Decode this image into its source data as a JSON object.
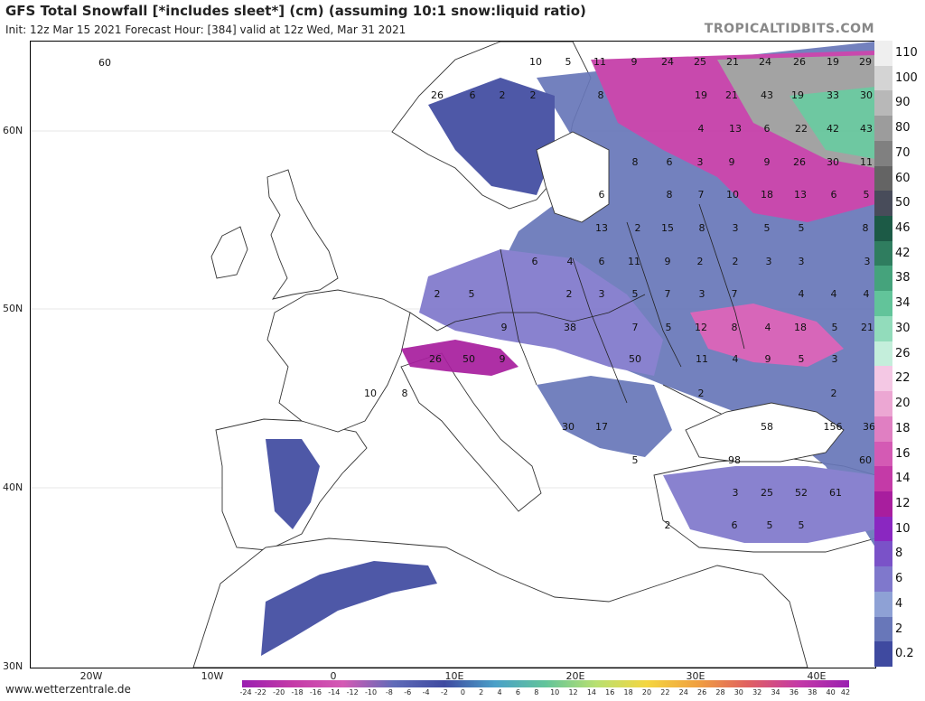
{
  "header": {
    "title": "GFS Total Snowfall [*includes sleet*] (cm) (assuming 10:1 snow:liquid ratio)",
    "subtitle": "Init: 12z Mar 15 2021   Forecast Hour: [384]   valid at 12z Wed, Mar 31 2021",
    "brand": "TROPICALTIDBITS.COM"
  },
  "footer": {
    "site": "www.wetterzentrale.de"
  },
  "axes": {
    "lat_labels": [
      "60N",
      "50N",
      "40N",
      "30N"
    ],
    "lon_labels": [
      "20W",
      "10W",
      "0",
      "10E",
      "20E",
      "30E",
      "40E"
    ]
  },
  "legend": {
    "labels": [
      "110",
      "100",
      "90",
      "80",
      "70",
      "60",
      "50",
      "46",
      "42",
      "38",
      "34",
      "30",
      "26",
      "22",
      "20",
      "18",
      "16",
      "14",
      "12",
      "10",
      "8",
      "6",
      "4",
      "2",
      "0.2"
    ],
    "colors": [
      "#efefef",
      "#d4d4d4",
      "#b8b8b8",
      "#9c9c9c",
      "#808080",
      "#646464",
      "#484c5a",
      "#1c5a46",
      "#2f7d5f",
      "#45a37c",
      "#62c49a",
      "#92dcbb",
      "#c4eedb",
      "#f4c8e4",
      "#eca7d3",
      "#e07fc2",
      "#d45ab4",
      "#c43aa7",
      "#a81e9e",
      "#8a27c1",
      "#7a52c8",
      "#7f78cc",
      "#8ea1d5",
      "#6877b9",
      "#3f4aa0"
    ]
  },
  "sleet_scale": {
    "labels": [
      "-24",
      "-22",
      "-20",
      "-18",
      "-16",
      "-14",
      "-12",
      "-10",
      "-8",
      "-6",
      "-4",
      "-2",
      "0",
      "2",
      "4",
      "6",
      "8",
      "10",
      "12",
      "14",
      "16",
      "18",
      "20",
      "22",
      "24",
      "26",
      "28",
      "30",
      "32",
      "34",
      "36",
      "38",
      "40",
      "42"
    ]
  },
  "map_values": [
    {
      "v": "60"
    },
    {
      "v": "10"
    },
    {
      "v": "5"
    },
    {
      "v": "11"
    },
    {
      "v": "9"
    },
    {
      "v": "24"
    },
    {
      "v": "25"
    },
    {
      "v": "21"
    },
    {
      "v": "24"
    },
    {
      "v": "26"
    },
    {
      "v": "19"
    },
    {
      "v": "29"
    },
    {
      "v": "26"
    },
    {
      "v": "6"
    },
    {
      "v": "2"
    },
    {
      "v": "2"
    },
    {
      "v": "8"
    },
    {
      "v": "19"
    },
    {
      "v": "21"
    },
    {
      "v": "43"
    },
    {
      "v": "19"
    },
    {
      "v": "33"
    },
    {
      "v": "30"
    },
    {
      "v": "4"
    },
    {
      "v": "13"
    },
    {
      "v": "6"
    },
    {
      "v": "22"
    },
    {
      "v": "42"
    },
    {
      "v": "43"
    },
    {
      "v": "8"
    },
    {
      "v": "6"
    },
    {
      "v": "3"
    },
    {
      "v": "9"
    },
    {
      "v": "9"
    },
    {
      "v": "26"
    },
    {
      "v": "30"
    },
    {
      "v": "11"
    },
    {
      "v": "6"
    },
    {
      "v": "8"
    },
    {
      "v": "7"
    },
    {
      "v": "10"
    },
    {
      "v": "18"
    },
    {
      "v": "13"
    },
    {
      "v": "6"
    },
    {
      "v": "5"
    },
    {
      "v": "13"
    },
    {
      "v": "2"
    },
    {
      "v": "15"
    },
    {
      "v": "8"
    },
    {
      "v": "3"
    },
    {
      "v": "5"
    },
    {
      "v": "5"
    },
    {
      "v": "8"
    },
    {
      "v": "6"
    },
    {
      "v": "4"
    },
    {
      "v": "6"
    },
    {
      "v": "11"
    },
    {
      "v": "9"
    },
    {
      "v": "2"
    },
    {
      "v": "2"
    },
    {
      "v": "3"
    },
    {
      "v": "3"
    },
    {
      "v": "3"
    },
    {
      "v": "2"
    },
    {
      "v": "5"
    },
    {
      "v": "2"
    },
    {
      "v": "3"
    },
    {
      "v": "5"
    },
    {
      "v": "7"
    },
    {
      "v": "3"
    },
    {
      "v": "7"
    },
    {
      "v": "4"
    },
    {
      "v": "4"
    },
    {
      "v": "4"
    },
    {
      "v": "9"
    },
    {
      "v": "38"
    },
    {
      "v": "7"
    },
    {
      "v": "5"
    },
    {
      "v": "12"
    },
    {
      "v": "8"
    },
    {
      "v": "4"
    },
    {
      "v": "18"
    },
    {
      "v": "5"
    },
    {
      "v": "21"
    },
    {
      "v": "26"
    },
    {
      "v": "50"
    },
    {
      "v": "9"
    },
    {
      "v": "50"
    },
    {
      "v": "11"
    },
    {
      "v": "4"
    },
    {
      "v": "9"
    },
    {
      "v": "5"
    },
    {
      "v": "3"
    },
    {
      "v": "10"
    },
    {
      "v": "8"
    },
    {
      "v": "2"
    },
    {
      "v": "2"
    },
    {
      "v": "30"
    },
    {
      "v": "17"
    },
    {
      "v": "58"
    },
    {
      "v": "156"
    },
    {
      "v": "36"
    },
    {
      "v": "5"
    },
    {
      "v": "98"
    },
    {
      "v": "60"
    },
    {
      "v": "3"
    },
    {
      "v": "25"
    },
    {
      "v": "52"
    },
    {
      "v": "61"
    },
    {
      "v": "2"
    },
    {
      "v": "6"
    },
    {
      "v": "5"
    },
    {
      "v": "5"
    }
  ]
}
